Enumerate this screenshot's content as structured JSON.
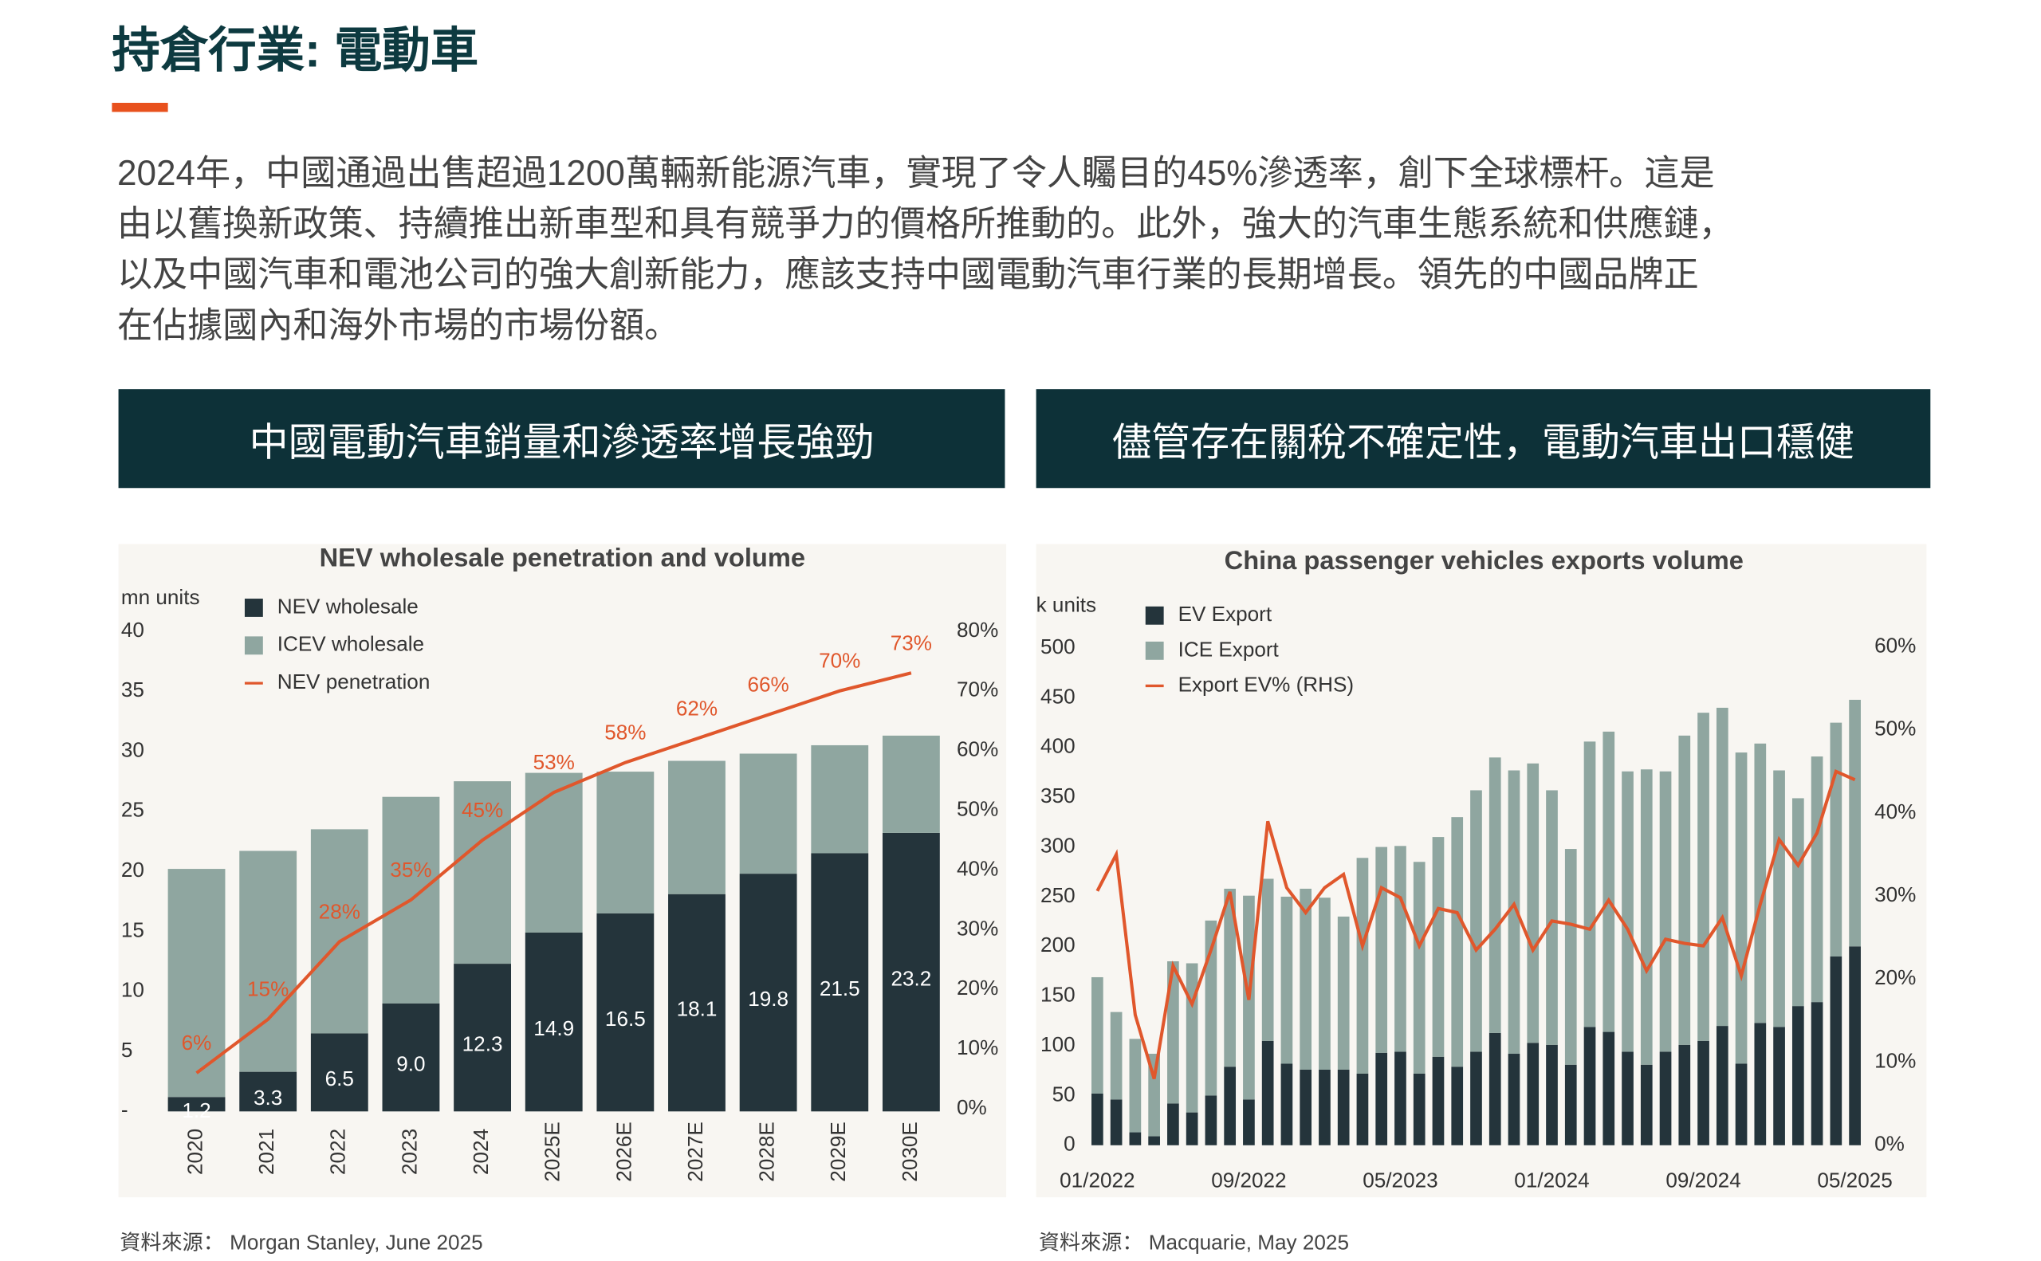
{
  "header": {
    "title": "持倉行業: 電動車"
  },
  "paragraph": [
    "2024年，中國通過出售超過1200萬輛新能源汽車，實現了令人矚目的45%滲透率，創下全球標杆。這是",
    "由以舊換新政策、持續推出新車型和具有競爭力的價格所推動的。此外，強大的汽車生態系統和供應鏈，",
    "以及中國汽車和電池公司的強大創新能力，應該支持中國電動汽車行業的長期增長。領先的中國品牌正",
    "在佔據國內和海外市場的市場份額。"
  ],
  "panels": [
    {
      "header": "中國電動汽車銷量和滲透率增長強勁",
      "source": "資料來源： Morgan Stanley, June 2025"
    },
    {
      "header": "儘管存在關稅不確定性，電動汽車出口穩健",
      "source": "資料來源： Macquarie, May 2025"
    }
  ],
  "chart_data": [
    {
      "type": "bar",
      "stacked": true,
      "title": "NEV wholesale penetration and volume",
      "unit": "mn units",
      "categories": [
        "2020",
        "2021",
        "2022",
        "2023",
        "2024",
        "2025E",
        "2026E",
        "2027E",
        "2028E",
        "2029E",
        "2030E"
      ],
      "series": [
        {
          "name": "NEV wholesale",
          "color": "#24343b",
          "values": [
            1.2,
            3.3,
            6.5,
            9.0,
            12.3,
            14.9,
            16.5,
            18.1,
            19.8,
            21.5,
            23.2
          ],
          "value_labels": [
            "1.2",
            "3.3",
            "6.5",
            "9.0",
            "12.3",
            "14.9",
            "16.5",
            "18.1",
            "19.8",
            "21.5",
            "23.2"
          ]
        },
        {
          "name": "ICEV wholesale",
          "color": "#8fa6a0",
          "values": [
            19.0,
            18.4,
            17.0,
            17.2,
            15.2,
            13.3,
            11.8,
            11.1,
            10.0,
            9.0,
            8.1
          ]
        },
        {
          "name": "NEV penetration",
          "color": "#e0572c",
          "type": "line",
          "axis": "y2",
          "values": [
            6,
            15,
            28,
            35,
            45,
            53,
            58,
            62,
            66,
            70,
            73
          ],
          "value_labels": [
            "6%",
            "15%",
            "28%",
            "35%",
            "45%",
            "53%",
            "58%",
            "62%",
            "66%",
            "70%",
            "73%"
          ]
        }
      ],
      "ylim": [
        0,
        40
      ],
      "yticks": [
        {
          "value": 0,
          "label": "-"
        },
        5,
        10,
        15,
        20,
        25,
        30,
        35,
        40
      ],
      "y2lim": [
        0,
        80
      ],
      "y2ticks": [
        {
          "value": 0,
          "label": "0%"
        },
        {
          "value": 10,
          "label": "10%"
        },
        {
          "value": 20,
          "label": "20%"
        },
        {
          "value": 30,
          "label": "30%"
        },
        {
          "value": 40,
          "label": "40%"
        },
        {
          "value": 50,
          "label": "50%"
        },
        {
          "value": 60,
          "label": "60%"
        },
        {
          "value": 70,
          "label": "70%"
        },
        {
          "value": 80,
          "label": "80%"
        }
      ],
      "grid": false
    },
    {
      "type": "bar",
      "stacked": true,
      "title": "China passenger vehicles exports volume",
      "unit": "k units",
      "categories": [
        "01/2022",
        null,
        null,
        null,
        null,
        null,
        null,
        null,
        "09/2022",
        null,
        null,
        null,
        null,
        null,
        null,
        null,
        "05/2023",
        null,
        null,
        null,
        null,
        null,
        null,
        null,
        "01/2024",
        null,
        null,
        null,
        null,
        null,
        null,
        null,
        "09/2024",
        null,
        null,
        null,
        null,
        null,
        null,
        null,
        "05/2025"
      ],
      "series": [
        {
          "name": "EV Export",
          "color": "#24343b",
          "values": [
            52,
            46,
            13,
            9,
            42,
            33,
            50,
            79,
            46,
            105,
            82,
            76,
            76,
            76,
            72,
            93,
            94,
            72,
            89,
            79,
            94,
            113,
            92,
            103,
            101,
            81,
            119,
            114,
            94,
            81,
            94,
            101,
            105,
            120,
            82,
            123,
            119,
            140,
            144,
            190,
            200
          ]
        },
        {
          "name": "ICE Export",
          "color": "#8fa6a0",
          "values": [
            117,
            88,
            94,
            83,
            143,
            150,
            176,
            179,
            205,
            163,
            168,
            182,
            173,
            154,
            217,
            207,
            207,
            213,
            221,
            251,
            263,
            277,
            285,
            281,
            256,
            217,
            287,
            302,
            282,
            297,
            282,
            311,
            330,
            320,
            313,
            281,
            258,
            209,
            247,
            235,
            248
          ]
        },
        {
          "name": "Export EV% (RHS)",
          "color": "#e0572c",
          "type": "line",
          "axis": "y2",
          "values": [
            30.6,
            35,
            15.7,
            8,
            21.6,
            17,
            23.5,
            30.5,
            17.5,
            39,
            31,
            28,
            31,
            32.6,
            24,
            31,
            29.8,
            24,
            28.5,
            28,
            23.5,
            26,
            29,
            23.5,
            27,
            26.6,
            26,
            29.5,
            26,
            21,
            24.8,
            24.3,
            24,
            27.4,
            20.4,
            29,
            36.8,
            33.7,
            37.6,
            45,
            44
          ]
        }
      ],
      "ylim": [
        0,
        500
      ],
      "yticks": [
        0,
        50,
        100,
        150,
        200,
        250,
        300,
        350,
        400,
        450,
        500
      ],
      "y2lim": [
        0,
        60
      ],
      "y2ticks": [
        {
          "value": 0,
          "label": "0%"
        },
        {
          "value": 10,
          "label": "10%"
        },
        {
          "value": 20,
          "label": "20%"
        },
        {
          "value": 30,
          "label": "30%"
        },
        {
          "value": 40,
          "label": "40%"
        },
        {
          "value": 50,
          "label": "50%"
        },
        {
          "value": 60,
          "label": "60%"
        }
      ],
      "grid": false
    }
  ]
}
